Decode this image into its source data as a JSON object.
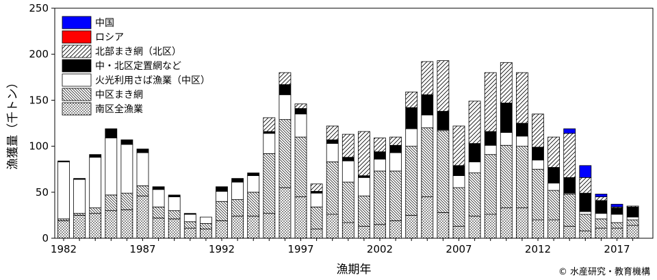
{
  "chart_data": {
    "type": "bar",
    "stacked": true,
    "xlabel": "漁期年",
    "ylabel": "漁獲量（千トン）",
    "ylim": [
      0,
      250
    ],
    "yticks": [
      0,
      50,
      100,
      150,
      200,
      250
    ],
    "xtick_labels": [
      "1982",
      "1987",
      "1992",
      "1997",
      "2002",
      "2007",
      "2012",
      "2017"
    ],
    "xtick_years": [
      1982,
      1987,
      1992,
      1997,
      2002,
      2007,
      2012,
      2017
    ],
    "credit": "© 水産研究・教育機構",
    "legend_position": "top-left",
    "categories": [
      1982,
      1983,
      1984,
      1985,
      1986,
      1987,
      1988,
      1989,
      1990,
      1991,
      1992,
      1993,
      1994,
      1995,
      1996,
      1997,
      1998,
      1999,
      2000,
      2001,
      2002,
      2003,
      2004,
      2005,
      2006,
      2007,
      2008,
      2009,
      2010,
      2011,
      2012,
      2013,
      2014,
      2015,
      2016,
      2017,
      2018
    ],
    "series": [
      {
        "name": "南区全漁業",
        "fill": "dots",
        "values": [
          19,
          25,
          27,
          30,
          31,
          46,
          22,
          21,
          11,
          10,
          19,
          24,
          24,
          27,
          55,
          45,
          10,
          26,
          17,
          13,
          15,
          19,
          25,
          45,
          28,
          13,
          24,
          26,
          33,
          33,
          20,
          20,
          13,
          8,
          11,
          11,
          14
        ]
      },
      {
        "name": "中区まき網",
        "fill": "backhatch",
        "values": [
          2,
          2,
          6,
          17,
          18,
          11,
          12,
          9,
          7,
          6,
          21,
          18,
          26,
          65,
          74,
          65,
          24,
          57,
          44,
          33,
          58,
          54,
          75,
          75,
          89,
          42,
          47,
          65,
          68,
          67,
          55,
          32,
          35,
          18,
          10,
          6,
          6
        ]
      },
      {
        "name": "火光利用さば漁業（中区）",
        "fill": "white",
        "values": [
          62,
          37,
          55,
          62,
          53,
          36,
          19,
          15,
          8,
          7,
          11,
          19,
          18,
          22,
          27,
          25,
          15,
          20,
          23,
          20,
          13,
          20,
          19,
          14,
          1,
          13,
          12,
          10,
          14,
          11,
          10,
          8,
          1,
          3,
          6,
          9,
          3
        ]
      },
      {
        "name": "中・北区定置網など",
        "fill": "black",
        "values": [
          1,
          1,
          3,
          10,
          5,
          4,
          3,
          2,
          1,
          0,
          5,
          4,
          3,
          2,
          11,
          6,
          2,
          4,
          4,
          2,
          8,
          8,
          23,
          22,
          20,
          11,
          20,
          15,
          32,
          14,
          14,
          17,
          17,
          20,
          14,
          7,
          11
        ]
      },
      {
        "name": "北部まき網（北区）",
        "fill": "fwdhatch",
        "values": [
          0,
          0,
          0,
          0,
          0,
          0,
          0,
          0,
          0,
          0,
          0,
          0,
          0,
          15,
          13,
          5,
          8,
          15,
          25,
          48,
          15,
          9,
          17,
          36,
          55,
          43,
          46,
          64,
          44,
          55,
          36,
          33,
          48,
          17,
          4,
          1,
          1
        ]
      },
      {
        "name": "ロシア",
        "color": "#ff0000",
        "values": [
          0,
          0,
          0,
          0,
          0,
          0,
          0,
          0,
          0,
          0,
          0,
          0,
          0,
          0,
          0,
          0,
          0,
          0,
          0,
          0,
          0,
          0,
          0,
          0,
          0,
          0,
          0,
          0,
          0,
          0,
          0,
          0,
          0,
          0,
          0,
          0,
          0
        ]
      },
      {
        "name": "中国",
        "color": "#0000ff",
        "values": [
          0,
          0,
          0,
          0,
          0,
          0,
          0,
          0,
          0,
          0,
          0,
          0,
          0,
          0,
          0,
          0,
          0,
          0,
          0,
          0,
          0,
          0,
          0,
          0,
          0,
          0,
          0,
          0,
          0,
          0,
          0,
          0,
          5,
          13,
          3,
          3,
          0
        ]
      }
    ],
    "legend_order": [
      "中国",
      "ロシア",
      "北部まき網（北区）",
      "中・北区定置網など",
      "火光利用さば漁業（中区）",
      "中区まき網",
      "南区全漁業"
    ]
  }
}
